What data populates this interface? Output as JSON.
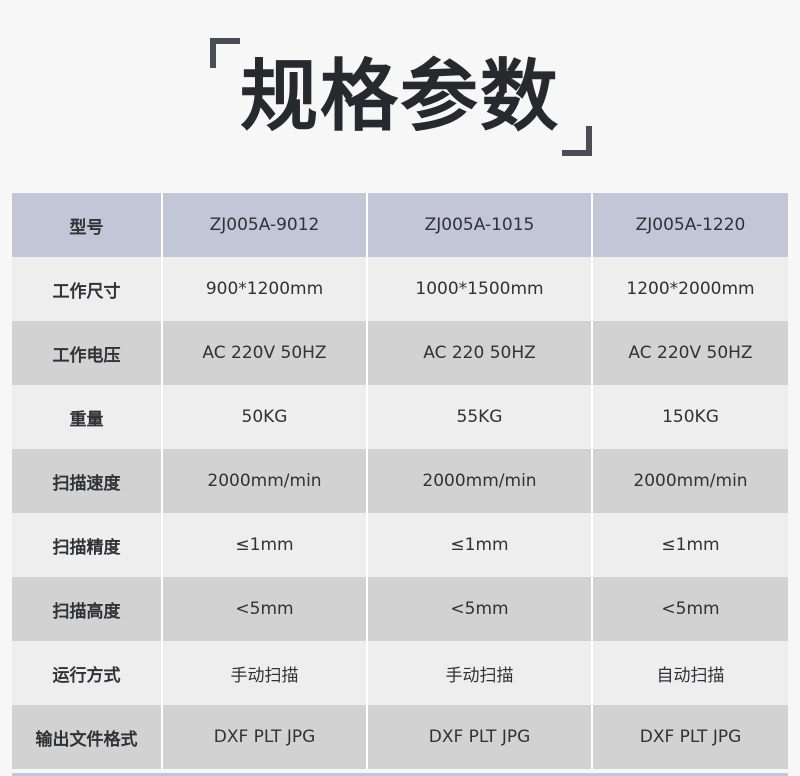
{
  "title": "规格参数",
  "colors": {
    "header_bg": "#c3c6d6",
    "row_light": "#eeeeee",
    "row_dark": "#d2d2d2",
    "bracket": "#4a4e54"
  },
  "table": {
    "rows": [
      {
        "label": "型号",
        "values": [
          "ZJ005A-9012",
          "ZJ005A-1015",
          "ZJ005A-1220"
        ]
      },
      {
        "label": "工作尺寸",
        "values": [
          "900*1200mm",
          "1000*1500mm",
          "1200*2000mm"
        ]
      },
      {
        "label": "工作电压",
        "values": [
          "AC 220V 50HZ",
          "AC 220 50HZ",
          "AC 220V 50HZ"
        ]
      },
      {
        "label": "重量",
        "values": [
          "50KG",
          "55KG",
          "150KG"
        ]
      },
      {
        "label": "扫描速度",
        "values": [
          "2000mm/min",
          "2000mm/min",
          "2000mm/min"
        ]
      },
      {
        "label": "扫描精度",
        "values": [
          "≤1mm",
          "≤1mm",
          "≤1mm"
        ]
      },
      {
        "label": "扫描高度",
        "values": [
          "<5mm",
          "<5mm",
          "<5mm"
        ]
      },
      {
        "label": "运行方式",
        "values": [
          "手动扫描",
          "手动扫描",
          "自动扫描"
        ]
      },
      {
        "label": "输出文件格式",
        "values": [
          "DXF PLT JPG",
          "DXF PLT JPG",
          "DXF PLT JPG"
        ]
      }
    ]
  }
}
